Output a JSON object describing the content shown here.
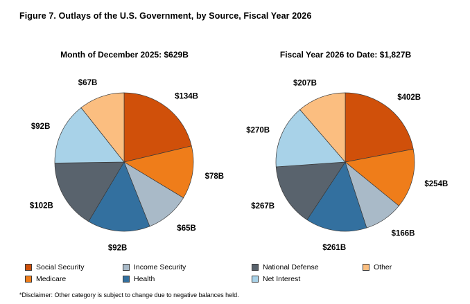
{
  "figure_title": "Figure 7. Outlays of the U.S. Government, by Source, Fiscal Year 2026",
  "footnote": "*Disclaimer: Other category is subject to change due to negative balances held.",
  "legend": {
    "items": [
      {
        "label": "Social Security",
        "color": "#D0500A"
      },
      {
        "label": "Medicare",
        "color": "#EF7D1A"
      },
      {
        "label": "Income Security",
        "color": "#A9BAC8"
      },
      {
        "label": "Health",
        "color": "#33709F"
      },
      {
        "label": "National Defense",
        "color": "#59636D"
      },
      {
        "label": "Net Interest",
        "color": "#A8D2E8"
      },
      {
        "label": "Other",
        "color": "#FBBE80"
      }
    ]
  },
  "chart_data": [
    {
      "type": "pie",
      "title": "Month of December 2025: $629B",
      "total_label": "$629B",
      "unit": "USD billions",
      "categories": [
        "Social Security",
        "Medicare",
        "Income Security",
        "Health",
        "National Defense",
        "Net Interest",
        "Other"
      ],
      "values": [
        134,
        78,
        65,
        92,
        102,
        92,
        67
      ],
      "labels": [
        "$134B",
        "$78B",
        "$65B",
        "$92B",
        "$102B",
        "$92B",
        "$67B"
      ],
      "colors": [
        "#D0500A",
        "#EF7D1A",
        "#A9BAC8",
        "#33709F",
        "#59636D",
        "#A8D2E8",
        "#FBBE80"
      ],
      "start_angle_deg": 0,
      "direction": "clockwise",
      "legend_position": "bottom"
    },
    {
      "type": "pie",
      "title": "Fiscal Year 2026 to Date: $1,827B",
      "total_label": "$1,827B",
      "unit": "USD billions",
      "categories": [
        "Social Security",
        "Medicare",
        "Income Security",
        "Health",
        "National Defense",
        "Net Interest",
        "Other"
      ],
      "values": [
        402,
        254,
        166,
        261,
        267,
        270,
        207
      ],
      "labels": [
        "$402B",
        "$254B",
        "$166B",
        "$261B",
        "$267B",
        "$270B",
        "$207B"
      ],
      "colors": [
        "#D0500A",
        "#EF7D1A",
        "#A9BAC8",
        "#33709F",
        "#59636D",
        "#A8D2E8",
        "#FBBE80"
      ],
      "start_angle_deg": 0,
      "direction": "clockwise",
      "legend_position": "bottom"
    }
  ]
}
